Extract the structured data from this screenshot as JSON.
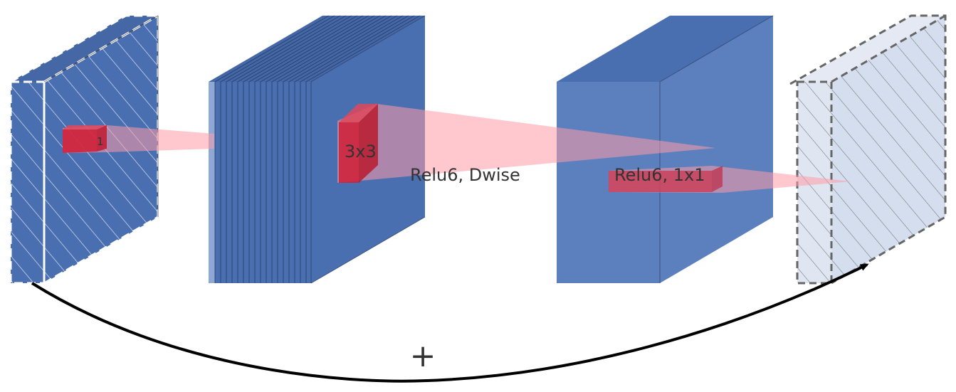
{
  "labels": {
    "input_kernel": "1",
    "dwise_kernel": "3x3",
    "dwise_op": "Relu6, Dwise",
    "proj_op": "Relu6, 1x1",
    "skip_op": "+"
  },
  "colors": {
    "block_front": "#4a6fb0",
    "block_side": "#5b80bd",
    "block_top": "#4567a6",
    "faded_front": "#d5deee",
    "faded_side": "#e0e7f3",
    "kernel": "#d21f35",
    "cone": "#ff9aa8",
    "arrow": "#000000"
  },
  "icons": {
    "skip_connection": "curved-arrow-icon",
    "add": "plus-icon"
  }
}
